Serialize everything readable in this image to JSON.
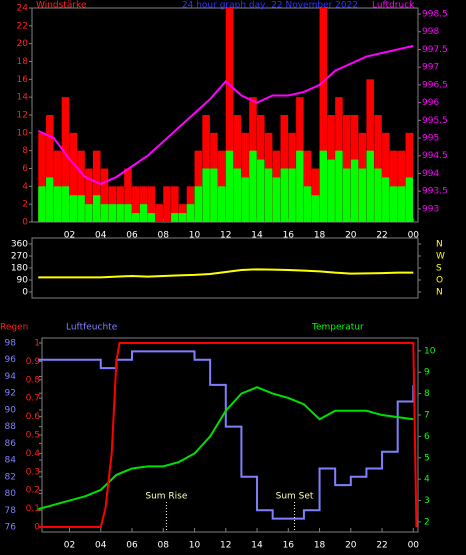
{
  "chart_data": [
    {
      "type": "bar",
      "title": "24 hour graph day, 22 November 2022",
      "title_color": "#3030ff",
      "ylabel": "Windstärke",
      "y2label": "Luftdruck",
      "y_color": "#ff2020",
      "y2_color": "#ff00ff",
      "xlim": [
        -0.4,
        24.3
      ],
      "xticks": [
        {
          "value": 2,
          "label": "02"
        },
        {
          "value": 4,
          "label": "04"
        },
        {
          "value": 6,
          "label": "06"
        },
        {
          "value": 8,
          "label": "08"
        },
        10,
        12,
        14,
        16,
        18,
        20,
        22,
        {
          "value": 24,
          "label": "00"
        }
      ],
      "ylim": [
        0,
        24
      ],
      "yticks": [
        0,
        2,
        4,
        6,
        8,
        10,
        12,
        14,
        16,
        18,
        20,
        22,
        24
      ],
      "y2lim": [
        992.63,
        998.67
      ],
      "y2ticks": [
        993,
        993.5,
        994,
        994.5,
        995,
        995.5,
        996,
        996.5,
        997,
        997.5,
        998,
        998.5
      ],
      "series": [
        {
          "kind": "bar",
          "color": "#ff0000",
          "x": [
            0,
            0.5,
            1,
            1.5,
            2,
            2.5,
            3,
            3.5,
            4,
            4.5,
            5,
            5.5,
            6,
            6.5,
            7,
            7.5,
            8,
            8.5,
            9,
            9.5,
            10,
            10.5,
            11,
            11.5,
            12,
            12.5,
            13,
            13.5,
            14,
            14.5,
            15,
            15.5,
            16,
            16.5,
            17,
            17.5,
            18,
            18.5,
            19,
            19.5,
            20,
            20.5,
            21,
            21.5,
            22,
            22.5,
            23,
            23.5
          ],
          "values": [
            10,
            12,
            8,
            14,
            10,
            8,
            6,
            8,
            6,
            4,
            4,
            6,
            4,
            4,
            4,
            2,
            4,
            4,
            2,
            4,
            8,
            12,
            10,
            8,
            24,
            12,
            10,
            14,
            12,
            10,
            8,
            12,
            10,
            14,
            8,
            6,
            24,
            12,
            14,
            12,
            12,
            10,
            16,
            12,
            10,
            8,
            8,
            10
          ]
        },
        {
          "kind": "bar",
          "color": "#00ff00",
          "x": [
            0,
            0.5,
            1,
            1.5,
            2,
            2.5,
            3,
            3.5,
            4,
            4.5,
            5,
            5.5,
            6,
            6.5,
            7,
            7.5,
            8,
            8.5,
            9,
            9.5,
            10,
            10.5,
            11,
            11.5,
            12,
            12.5,
            13,
            13.5,
            14,
            14.5,
            15,
            15.5,
            16,
            16.5,
            17,
            17.5,
            18,
            18.5,
            19,
            19.5,
            20,
            20.5,
            21,
            21.5,
            22,
            22.5,
            23,
            23.5
          ],
          "values": [
            4,
            5,
            4,
            4,
            3,
            3,
            2,
            3,
            2,
            2,
            2,
            2,
            1,
            2,
            1,
            0,
            0,
            1,
            1,
            2,
            4,
            6,
            6,
            4,
            8,
            6,
            5,
            8,
            7,
            6,
            5,
            6,
            6,
            8,
            4,
            3,
            8,
            7,
            8,
            6,
            7,
            6,
            8,
            6,
            5,
            4,
            4,
            5
          ]
        },
        {
          "kind": "line",
          "color": "#ff00ff",
          "axis": "y2",
          "x": [
            0,
            1,
            2,
            3,
            4,
            5,
            6,
            7,
            8,
            9,
            10,
            11,
            12,
            13,
            14,
            15,
            16,
            17,
            18,
            19,
            20,
            21,
            22,
            23,
            24
          ],
          "values": [
            995.2,
            995.0,
            994.4,
            993.9,
            993.7,
            993.9,
            994.2,
            994.5,
            994.9,
            995.3,
            995.7,
            996.1,
            996.6,
            996.2,
            996.0,
            996.2,
            996.2,
            996.3,
            996.5,
            996.9,
            997.1,
            997.3,
            997.4,
            997.5,
            997.6
          ]
        }
      ]
    },
    {
      "type": "line",
      "y_color": "#ffffff",
      "y2_color": "#ffff00",
      "xlim": [
        -0.4,
        24.3
      ],
      "ylim": [
        -45,
        405
      ],
      "yticks": [
        0,
        90,
        180,
        270,
        360
      ],
      "y2lim": [
        -45,
        405
      ],
      "y2ticks": [
        {
          "value": 360,
          "label": "N"
        },
        {
          "value": 270,
          "label": "W"
        },
        {
          "value": 180,
          "label": "S"
        },
        {
          "value": 90,
          "label": "O"
        },
        {
          "value": 0,
          "label": "N"
        }
      ],
      "series": [
        {
          "kind": "line",
          "color": "#ffff00",
          "x": [
            0,
            1,
            2,
            3,
            4,
            5,
            6,
            7,
            8,
            9,
            10,
            11,
            12,
            13,
            14,
            15,
            16,
            17,
            18,
            19,
            20,
            21,
            22,
            23,
            24
          ],
          "values": [
            110,
            110,
            110,
            110,
            110,
            115,
            120,
            115,
            120,
            125,
            128,
            135,
            150,
            165,
            170,
            168,
            165,
            160,
            155,
            145,
            138,
            140,
            142,
            145,
            145
          ]
        }
      ]
    },
    {
      "type": "line",
      "ylabel": "Regen",
      "y3label": "Luftfeuchte",
      "y2label": "Temperatur",
      "y_color": "#ff2020",
      "y2_color": "#00ff00",
      "y3_color": "#8080ff",
      "xlim": [
        0.24,
        24.3
      ],
      "xticks": [
        {
          "value": 2,
          "label": "02"
        },
        {
          "value": 4,
          "label": "04"
        },
        {
          "value": 6,
          "label": "06"
        },
        {
          "value": 8,
          "label": "08"
        },
        10,
        12,
        14,
        16,
        18,
        20,
        22,
        {
          "value": 24,
          "label": "00"
        }
      ],
      "ylim": [
        -0.027,
        1.027
      ],
      "yticks": [
        0,
        0.1,
        0.2,
        0.3,
        0.4,
        0.5,
        0.6,
        0.7,
        0.8,
        0.9,
        1
      ],
      "y2lim": [
        1.53,
        10.6
      ],
      "y2ticks": [
        2,
        3,
        4,
        5,
        6,
        7,
        8,
        9,
        10
      ],
      "y3lim": [
        75.4,
        98.6
      ],
      "y3ticks": [
        76,
        78,
        80,
        82,
        84,
        86,
        88,
        90,
        92,
        94,
        96,
        98
      ],
      "annotations": [
        {
          "text": "Sum Rise",
          "x": 8.2
        },
        {
          "text": "Sum Set",
          "x": 16.4
        }
      ],
      "series": [
        {
          "kind": "step",
          "color": "#8080ff",
          "axis": "y3",
          "x": [
            0,
            1,
            2,
            3,
            4,
            5,
            6,
            7,
            8,
            9,
            10,
            11,
            12,
            13,
            14,
            15,
            16,
            17,
            18,
            19,
            20,
            21,
            22,
            23,
            24
          ],
          "values": [
            96,
            96,
            96,
            96,
            95,
            96,
            97,
            97,
            97,
            97,
            96,
            93,
            88,
            82,
            78,
            77,
            77,
            78,
            83,
            81,
            82,
            83,
            85,
            91,
            93
          ]
        },
        {
          "kind": "line",
          "color": "#00e000",
          "axis": "y2",
          "x": [
            0,
            1,
            2,
            3,
            4,
            5,
            6,
            7,
            8,
            9,
            10,
            11,
            12,
            13,
            14,
            15,
            16,
            17,
            18,
            19,
            20,
            21,
            22,
            23,
            24
          ],
          "values": [
            2.6,
            2.8,
            3.0,
            3.2,
            3.5,
            4.2,
            4.5,
            4.6,
            4.6,
            4.8,
            5.2,
            6.0,
            7.2,
            8.0,
            8.3,
            8.0,
            7.8,
            7.5,
            6.8,
            7.2,
            7.2,
            7.2,
            7.0,
            6.9,
            6.8
          ]
        },
        {
          "kind": "line",
          "color": "#ff0000",
          "x": [
            0,
            4,
            4.3,
            4.7,
            5.0,
            5.2,
            24.0,
            24.2
          ],
          "values": [
            0,
            0,
            0.1,
            0.4,
            0.9,
            1.0,
            1.0,
            0
          ]
        }
      ]
    }
  ]
}
